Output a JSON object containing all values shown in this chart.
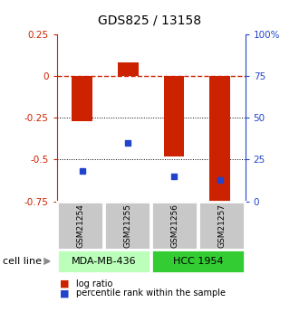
{
  "title": "GDS825 / 13158",
  "samples": [
    "GSM21254",
    "GSM21255",
    "GSM21256",
    "GSM21257"
  ],
  "log_ratios": [
    -0.27,
    0.08,
    -0.48,
    -0.78
  ],
  "percentile_ranks": [
    18,
    35,
    15,
    13
  ],
  "ylim_left": [
    -0.75,
    0.25
  ],
  "ylim_right": [
    0,
    100
  ],
  "yticks_left": [
    -0.75,
    -0.5,
    -0.25,
    0,
    0.25
  ],
  "yticks_right": [
    0,
    25,
    50,
    75,
    100
  ],
  "cell_lines": [
    {
      "label": "MDA-MB-436",
      "samples": [
        0,
        1
      ],
      "color": "#bbffbb"
    },
    {
      "label": "HCC 1954",
      "samples": [
        2,
        3
      ],
      "color": "#33cc33"
    }
  ],
  "bar_color": "#cc2200",
  "dot_color": "#2244cc",
  "bar_width": 0.45,
  "dotted_lines": [
    -0.25,
    -0.5
  ],
  "sample_box_color": "#c8c8c8",
  "cell_line_label": "cell line"
}
